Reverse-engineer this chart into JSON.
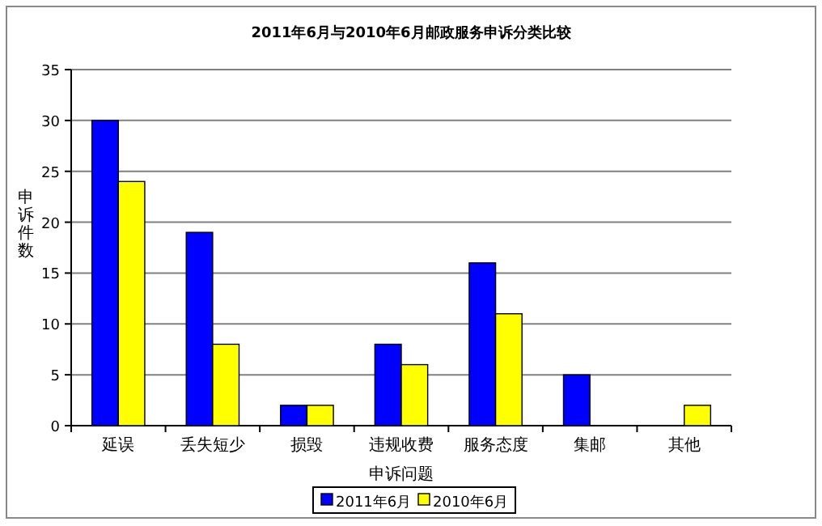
{
  "chart_data": {
    "type": "bar",
    "title": "2011年6月与2010年6月邮政服务申诉分类比较",
    "xlabel": "申诉问题",
    "ylabel": "申诉件数",
    "categories": [
      "延误",
      "丢失短少",
      "损毁",
      "违规收费",
      "服务态度",
      "集邮",
      "其他"
    ],
    "series": [
      {
        "name": "2011年6月",
        "color": "#0000ff",
        "values": [
          30,
          19,
          2,
          8,
          16,
          5,
          0
        ]
      },
      {
        "name": "2010年6月",
        "color": "#ffff00",
        "values": [
          24,
          8,
          2,
          6,
          11,
          0,
          2
        ]
      }
    ],
    "ylim": [
      0,
      35
    ],
    "yticks": [
      0,
      5,
      10,
      15,
      20,
      25,
      30,
      35
    ],
    "grid": "y",
    "legend": "bottom"
  }
}
